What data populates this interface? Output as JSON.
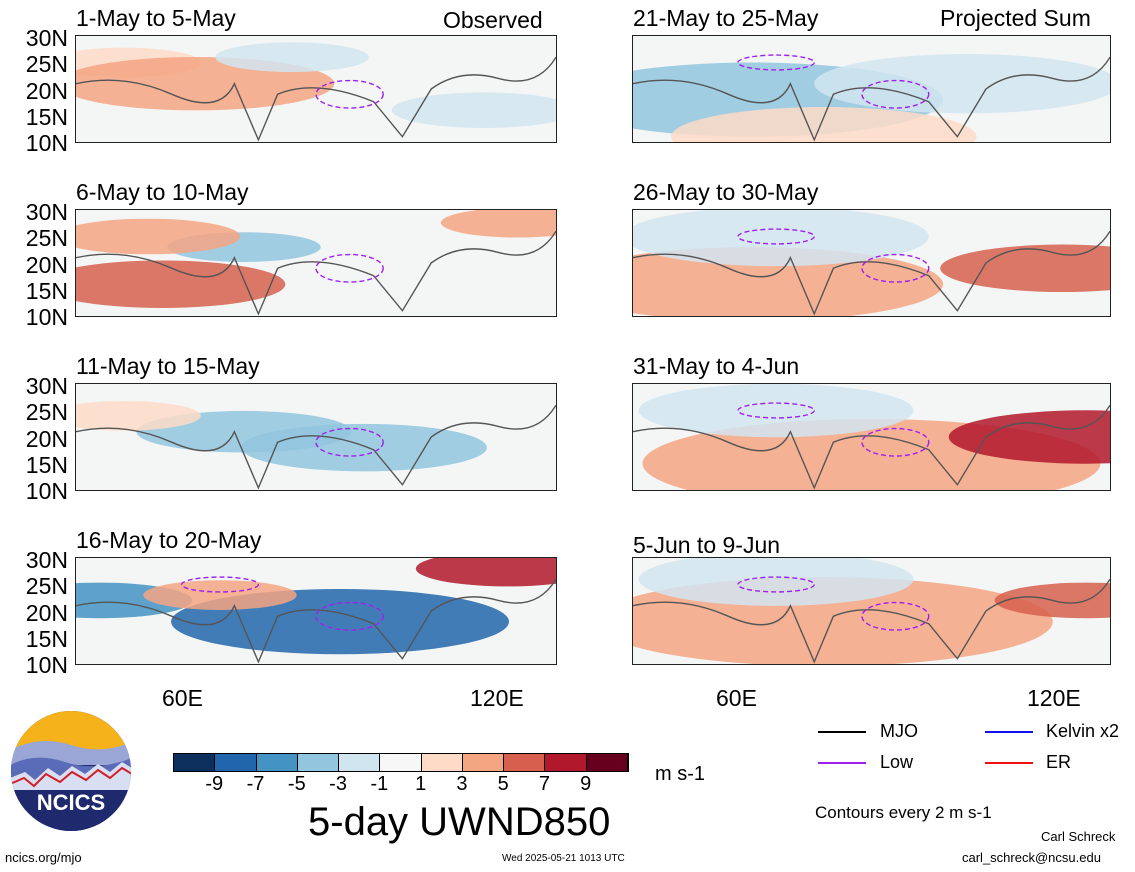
{
  "panels": [
    {
      "title": "1-May to 5-May",
      "corner": "Observed"
    },
    {
      "title": "6-May to 10-May",
      "corner": ""
    },
    {
      "title": "11-May to 15-May",
      "corner": ""
    },
    {
      "title": "16-May to 20-May",
      "corner": ""
    },
    {
      "title": "21-May to 25-May",
      "corner": "Projected Sum"
    },
    {
      "title": "26-May to 30-May",
      "corner": ""
    },
    {
      "title": "31-May to 4-Jun",
      "corner": ""
    },
    {
      "title": "5-Jun to 9-Jun",
      "corner": ""
    }
  ],
  "lat_labels": [
    "30N",
    "25N",
    "20N",
    "15N",
    "10N"
  ],
  "lon_labels": [
    "60E",
    "120E"
  ],
  "colorbar": {
    "labels": [
      "-9",
      "-7",
      "-5",
      "-3",
      "-1",
      "1",
      "3",
      "5",
      "7",
      "9"
    ],
    "colors": [
      "#0d2f5e",
      "#2166ac",
      "#4393c3",
      "#92c5de",
      "#d1e5f0",
      "#f7f7f7",
      "#fddbc7",
      "#f4a582",
      "#d6604d",
      "#b2182b",
      "#67001f"
    ],
    "units": "m s-1"
  },
  "title": "5-day UWND850",
  "legend": {
    "items": [
      {
        "label": "MJO",
        "color": "#000000"
      },
      {
        "label": "Kelvin x2",
        "color": "#1010ee"
      },
      {
        "label": "Low",
        "color": "#a020f0"
      },
      {
        "label": "ER",
        "color": "#ee1010"
      }
    ],
    "contours_note": "Contours every 2 m s-1"
  },
  "logo": {
    "text": "NCICS"
  },
  "footer": {
    "url": "ncics.org/mjo",
    "timestamp": "Wed 2025-05-21 1013 UTC",
    "author": "Carl Schreck",
    "email": "carl_schreck@ncsu.edu"
  }
}
